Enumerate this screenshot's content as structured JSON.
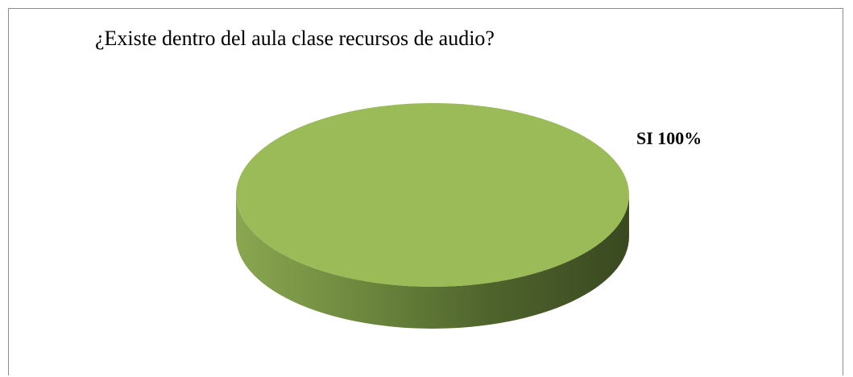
{
  "chart_data": {
    "type": "pie",
    "title": "¿Existe dentro del aula clase recursos de audio?",
    "categories": [
      "SI"
    ],
    "values": [
      100
    ],
    "labels": [
      "SI 100%"
    ],
    "colors": {
      "slice_top": "#9bbb59",
      "slice_side_light": "#8aa650",
      "slice_side_dark": "#3a4920",
      "frame_border": "#8c8c8c"
    },
    "style": "3d-pie"
  }
}
